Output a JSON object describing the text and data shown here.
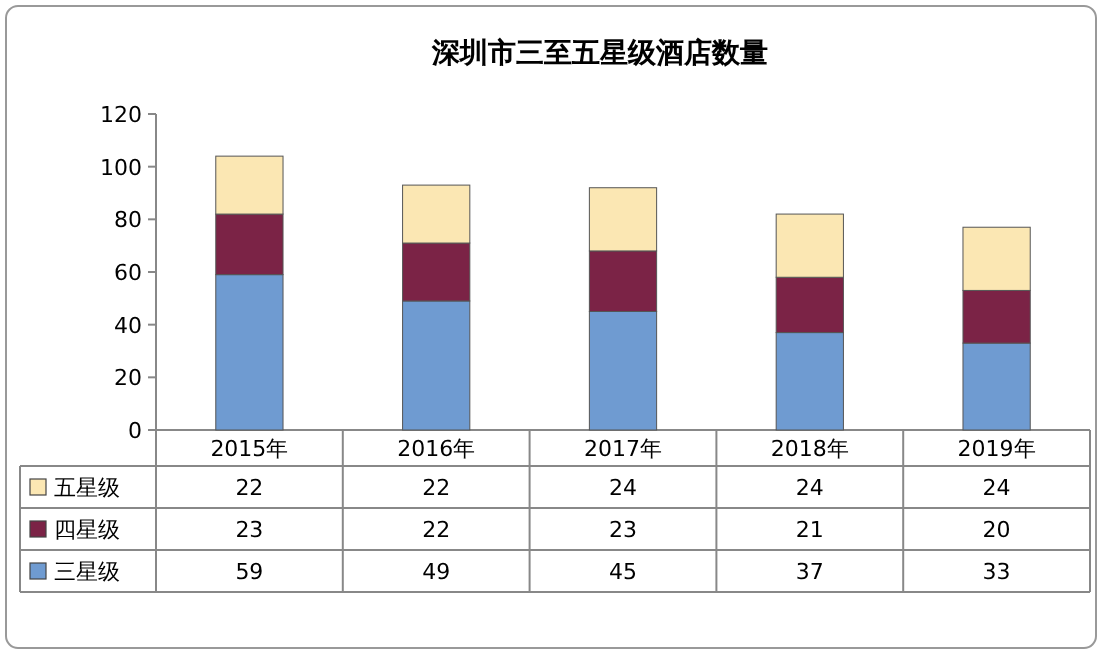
{
  "chart_data": {
    "type": "bar",
    "title": "深圳市三至五星级酒店数量",
    "stacked": true,
    "data_labels": true,
    "legend": "bottom",
    "categories": [
      "2015年",
      "2016年",
      "2017年",
      "2018年",
      "2019年"
    ],
    "series": [
      {
        "name": "三星级",
        "color": "#6f9bd1",
        "values": [
          59,
          49,
          45,
          37,
          33
        ]
      },
      {
        "name": "四星级",
        "color": "#7b2346",
        "values": [
          23,
          22,
          23,
          21,
          20
        ]
      },
      {
        "name": "五星级",
        "color": "#fbe7b3",
        "values": [
          22,
          22,
          24,
          24,
          24
        ]
      }
    ],
    "ylim": [
      0,
      120
    ],
    "yticks": [
      0,
      20,
      40,
      60,
      80,
      100,
      120
    ]
  }
}
